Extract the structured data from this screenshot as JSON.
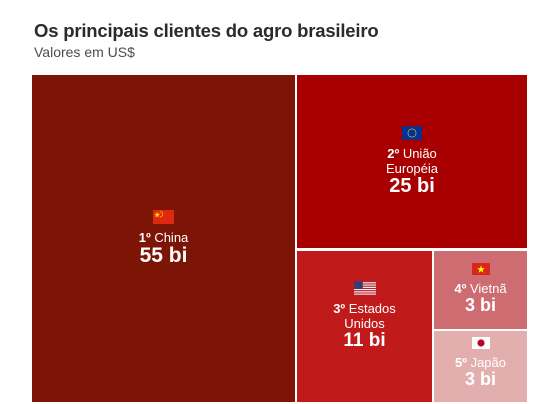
{
  "title": "Os principais clientes do agro brasileiro",
  "subtitle": "Valores em US$",
  "chart_data": {
    "type": "treemap",
    "title": "Os principais clientes do agro brasileiro",
    "subtitle": "Valores em US$",
    "unit": "US$",
    "items": [
      {
        "rank": "1º",
        "name_lines": [
          "China"
        ],
        "value_label": "55 bi",
        "value": 55,
        "flag_icon": "china-flag-icon",
        "color": "#7d1507"
      },
      {
        "rank": "2º",
        "name_lines": [
          "União",
          "Européia"
        ],
        "value_label": "25 bi",
        "value": 25,
        "flag_icon": "eu-flag-icon",
        "color": "#a80000"
      },
      {
        "rank": "3º",
        "name_lines": [
          "Estados",
          "Unidos"
        ],
        "value_label": "11 bi",
        "value": 11,
        "flag_icon": "usa-flag-icon",
        "color": "#c11a1a"
      },
      {
        "rank": "4º",
        "name_lines": [
          "Vietnã"
        ],
        "value_label": "3 bi",
        "value": 3,
        "flag_icon": "vietnam-flag-icon",
        "color": "#cd6d72"
      },
      {
        "rank": "5º",
        "name_lines": [
          "Japão"
        ],
        "value_label": "3 bi",
        "value": 3,
        "flag_icon": "japan-flag-icon",
        "color": "#e2aeae"
      }
    ]
  }
}
